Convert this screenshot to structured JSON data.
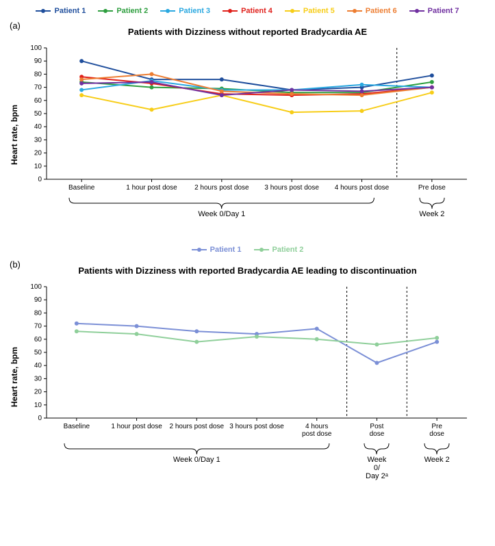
{
  "panelA": {
    "letter": "(a)",
    "title": "Patients with Dizziness without reported Bradycardia AE",
    "ylabel": "Heart rate, bpm",
    "ylim": [
      0,
      100
    ],
    "ytick_step": 10,
    "x_labels": [
      "Baseline",
      "1 hour post dose",
      "2 hours post dose",
      "3 hours post dose",
      "4 hours post dose",
      "Pre dose"
    ],
    "vline_after_index": 4,
    "legend": [
      {
        "label": "Patient 1",
        "color": "#1f4e9c"
      },
      {
        "label": "Patient 2",
        "color": "#2e9e3f"
      },
      {
        "label": "Patient 3",
        "color": "#2aa8e0"
      },
      {
        "label": "Patient 4",
        "color": "#e0201b"
      },
      {
        "label": "Patient 5",
        "color": "#f7cd18"
      },
      {
        "label": "Patient 6",
        "color": "#ed7d31"
      },
      {
        "label": "Patient 7",
        "color": "#7030a0"
      }
    ],
    "series": [
      {
        "color": "#1f4e9c",
        "values": [
          90,
          76,
          76,
          68,
          70,
          79
        ]
      },
      {
        "color": "#2e9e3f",
        "values": [
          74,
          70,
          69,
          66,
          66,
          74
        ]
      },
      {
        "color": "#2aa8e0",
        "values": [
          68,
          75,
          68,
          68,
          72,
          70
        ]
      },
      {
        "color": "#e0201b",
        "values": [
          78,
          73,
          65,
          64,
          65,
          70
        ]
      },
      {
        "color": "#f7cd18",
        "values": [
          64,
          53,
          64,
          51,
          52,
          66
        ]
      },
      {
        "color": "#ed7d31",
        "values": [
          76,
          80,
          67,
          65,
          64,
          70
        ]
      },
      {
        "color": "#7030a0",
        "values": [
          73,
          74,
          64,
          68,
          67,
          70
        ]
      }
    ],
    "line_width": 2,
    "marker_radius": 3,
    "background": "#ffffff",
    "axis_color": "#000000",
    "tick_fontsize": 10,
    "brackets": [
      {
        "label": "Week 0/Day 1",
        "from": 0,
        "to": 4
      },
      {
        "label": "Week 2",
        "from": 5,
        "to": 5
      }
    ]
  },
  "panelB": {
    "letter": "(b)",
    "title": "Patients with Dizziness with reported Bradycardia AE leading to discontinuation",
    "ylabel": "Heart rate, bpm",
    "ylim": [
      0,
      100
    ],
    "ytick_step": 10,
    "x_labels": [
      "Baseline",
      "1 hour post dose",
      "2 hours post dose",
      "3 hours post dose",
      "4 hours\npost dose",
      "Post\ndose",
      "Pre\ndose"
    ],
    "vlines_after_index": [
      4,
      5
    ],
    "legend": [
      {
        "label": "Patient 1",
        "color": "#7b8fd6"
      },
      {
        "label": "Patient 2",
        "color": "#8fcf9a"
      }
    ],
    "series": [
      {
        "color": "#7b8fd6",
        "values": [
          72,
          70,
          66,
          64,
          68,
          42,
          58
        ]
      },
      {
        "color": "#8fcf9a",
        "values": [
          66,
          64,
          58,
          62,
          60,
          56,
          61
        ]
      }
    ],
    "line_width": 2,
    "marker_radius": 3,
    "background": "#ffffff",
    "axis_color": "#000000",
    "tick_fontsize": 10,
    "brackets": [
      {
        "label": "Week 0/Day 1",
        "from": 0,
        "to": 4
      },
      {
        "label": "Week 0/\nDay 2ᵃ",
        "from": 5,
        "to": 5
      },
      {
        "label": "Week 2",
        "from": 6,
        "to": 6
      }
    ]
  }
}
